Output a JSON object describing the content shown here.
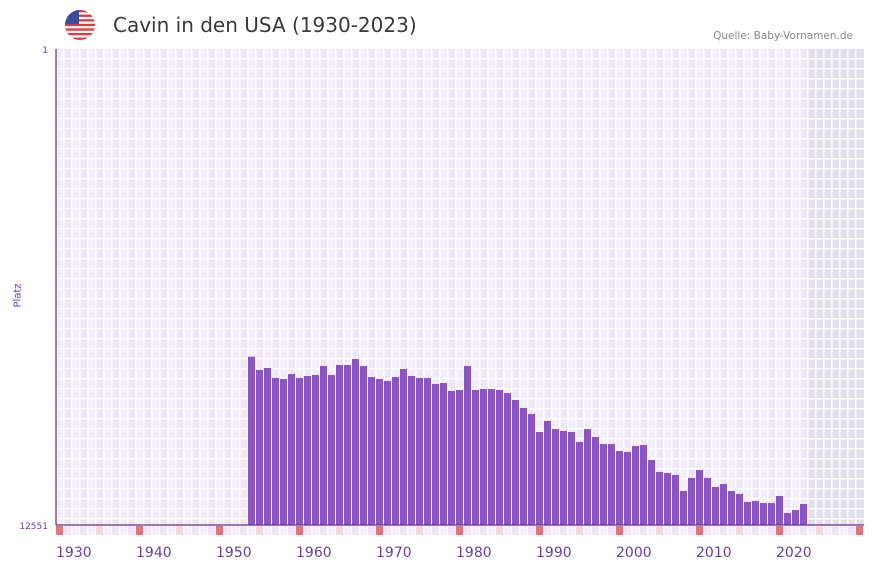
{
  "header": {
    "title": "Cavin in den USA (1930-2023)",
    "source": "Quelle: Baby-Vornamen.de",
    "flag_icon": "us-flag-icon"
  },
  "colors": {
    "bar": "#8b54c8",
    "axis": "#5b2d90",
    "tick_text": "#6a3fa0",
    "decade_marker": "#e5737a",
    "half_decade_marker": "#f5d6de",
    "grid_a": "#f2eefa",
    "grid_b": "#ece6f7",
    "future": "#e3dfec"
  },
  "chart_data": {
    "type": "bar",
    "title": "Cavin in den USA (1930-2023)",
    "xlabel": "",
    "ylabel": "Platz",
    "y_inverted": true,
    "ylim": [
      1,
      12551
    ],
    "xlim": [
      1930,
      2030
    ],
    "y_tick_labels": [
      "1",
      "12551"
    ],
    "x_tick_labels": [
      "1930",
      "1940",
      "1950",
      "1960",
      "1970",
      "1980",
      "1990",
      "2000",
      "2010",
      "2020"
    ],
    "x_ticks": [
      1930,
      1940,
      1950,
      1960,
      1970,
      1980,
      1990,
      2000,
      2010,
      2020
    ],
    "grid": true,
    "years": [
      1954,
      1955,
      1956,
      1957,
      1958,
      1959,
      1960,
      1961,
      1962,
      1963,
      1964,
      1965,
      1966,
      1967,
      1968,
      1969,
      1970,
      1971,
      1972,
      1973,
      1974,
      1975,
      1976,
      1977,
      1978,
      1979,
      1980,
      1981,
      1982,
      1983,
      1984,
      1985,
      1986,
      1987,
      1988,
      1989,
      1990,
      1991,
      1992,
      1993,
      1994,
      1995,
      1996,
      1997,
      1998,
      1999,
      2000,
      2001,
      2002,
      2003,
      2004,
      2005,
      2006,
      2007,
      2008,
      2009,
      2010,
      2011,
      2012,
      2013,
      2014,
      2015,
      2016,
      2017,
      2018,
      2019,
      2020,
      2021,
      2022,
      2023
    ],
    "values": [
      8114,
      8463,
      8412,
      8675,
      8702,
      8570,
      8675,
      8623,
      8596,
      8359,
      8596,
      8333,
      8333,
      8175,
      8359,
      8649,
      8702,
      8755,
      8649,
      8438,
      8623,
      8675,
      8675,
      8834,
      8807,
      9018,
      8992,
      8359,
      8992,
      8965,
      8965,
      8992,
      9071,
      9255,
      9466,
      9625,
      10099,
      9809,
      10020,
      10073,
      10099,
      10363,
      10020,
      10231,
      10415,
      10415,
      10600,
      10627,
      10468,
      10442,
      10837,
      11153,
      11180,
      11233,
      11655,
      11312,
      11101,
      11312,
      11549,
      11470,
      11655,
      11734,
      11945,
      11919,
      11972,
      11972,
      11787,
      12235,
      12156,
      11998
    ]
  }
}
